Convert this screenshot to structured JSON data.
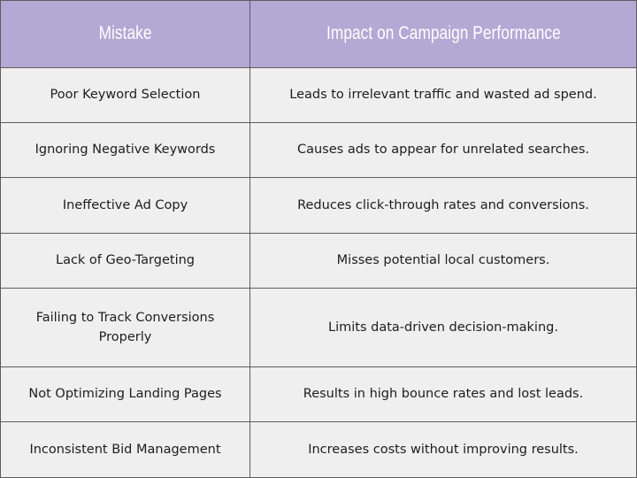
{
  "header": {
    "col1": "Mistake",
    "col2": "Impact on Campaign Performance"
  },
  "colors": {
    "header_bg": "#b4a8d4",
    "row_bg": "#efefef",
    "border": "#5d5d5d"
  },
  "rows": [
    {
      "mistake": "Poor Keyword Selection",
      "impact": "Leads to irrelevant traffic and wasted ad spend."
    },
    {
      "mistake": "Ignoring Negative Keywords",
      "impact": "Causes ads to appear for unrelated searches."
    },
    {
      "mistake": "Ineffective Ad Copy",
      "impact": "Reduces click-through rates and conversions."
    },
    {
      "mistake": "Lack of Geo-Targeting",
      "impact": "Misses potential local customers."
    },
    {
      "mistake": "Failing to Track Conversions Properly",
      "impact": "Limits data-driven decision-making."
    },
    {
      "mistake": "Not Optimizing Landing Pages",
      "impact": "Results in high bounce rates and lost leads."
    },
    {
      "mistake": "Inconsistent Bid Management",
      "impact": "Increases costs without improving results."
    }
  ]
}
